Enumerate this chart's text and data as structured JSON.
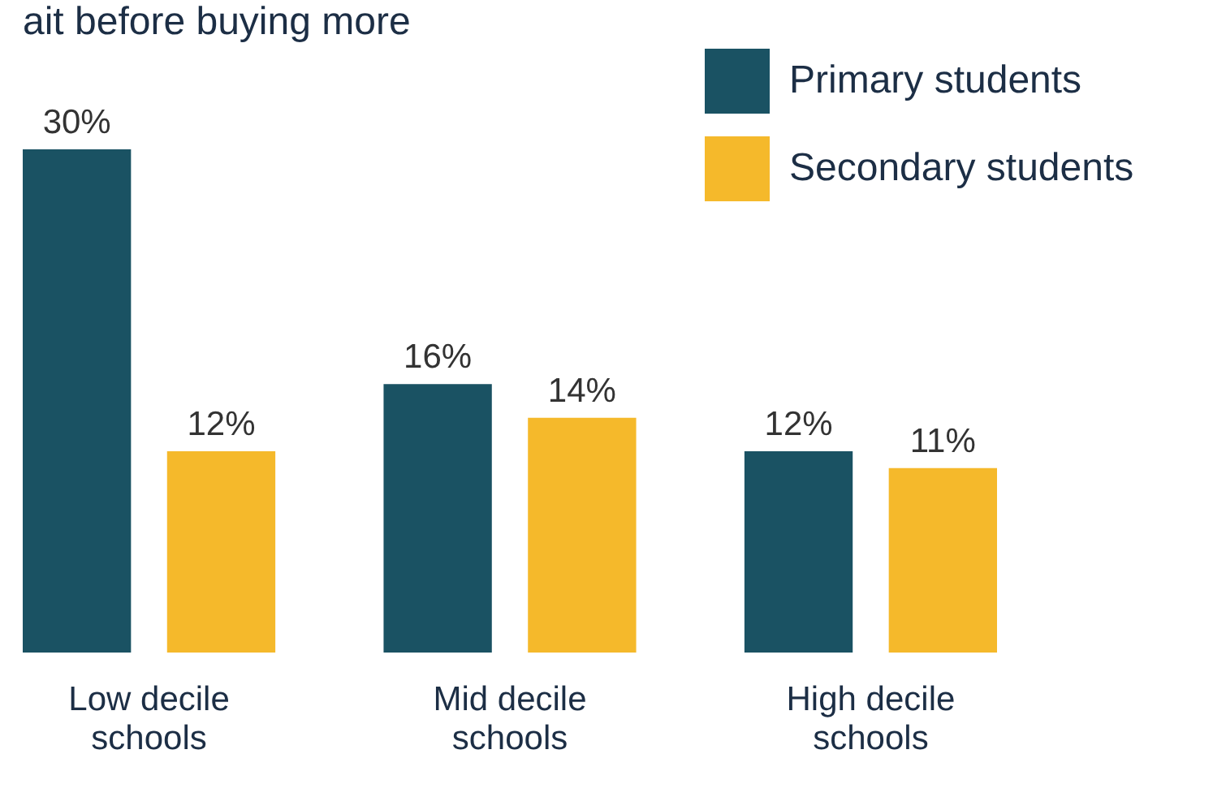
{
  "chart_data": {
    "type": "bar",
    "title": "ait before buying more",
    "categories": [
      "Low decile schools",
      "Mid decile schools",
      "High  decile schools"
    ],
    "series": [
      {
        "name": "Primary students",
        "color": "#1a5263",
        "values": [
          30,
          16,
          12
        ],
        "value_labels": [
          "30%",
          "16%",
          "12%"
        ]
      },
      {
        "name": "Secondary students",
        "color": "#f5b92b",
        "values": [
          12,
          14,
          11
        ],
        "value_labels": [
          "12%",
          "14%",
          "11%"
        ]
      }
    ],
    "legend": "top right",
    "grid": false
  }
}
